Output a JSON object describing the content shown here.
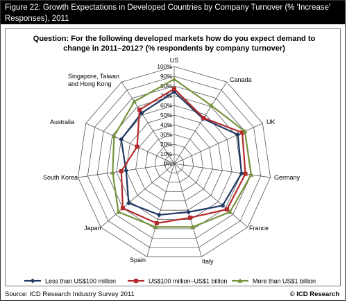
{
  "figure": {
    "title": "Figure 22: Growth Expectations in Developed Countries by Company Turnover (% 'Increase' Responses), 2011",
    "question_line1": "Question: For the following developed markets how do you expect demand to",
    "question_line2": "change in 2011–2012? (% respondents by company turnover)",
    "source": "Source: ICD Research Industry Survey 2011",
    "brand": "© ICD Research"
  },
  "chart_data": {
    "type": "radar",
    "axes": [
      "US",
      "Canada",
      "UK",
      "Germany",
      "France",
      "Italy",
      "Spain",
      "Japan",
      "South Korea",
      "Australia",
      "Singapore, Taiwan and Hong Kong"
    ],
    "axis_labels": [
      [
        "US"
      ],
      [
        "Canada"
      ],
      [
        "UK"
      ],
      [
        "Germany"
      ],
      [
        "France"
      ],
      [
        "Italy"
      ],
      [
        "Spain"
      ],
      [
        "Japan"
      ],
      [
        "South Korea"
      ],
      [
        "Australia"
      ],
      [
        "Singapore, Taiwan",
        "and Hong Kong"
      ]
    ],
    "ticks": [
      "0%",
      "10%",
      "20%",
      "30%",
      "40%",
      "50%",
      "60%",
      "70%",
      "80%",
      "90%",
      "100%"
    ],
    "range": [
      0,
      100
    ],
    "legend_position": "bottom",
    "series": [
      {
        "name": "Less than US$100 million",
        "color": "#1f3864",
        "marker": "diamond",
        "values": [
          74,
          55,
          72,
          70,
          66,
          52,
          55,
          62,
          50,
          60,
          62
        ]
      },
      {
        "name": "US$100 million–US$1 billion",
        "color": "#b22a2a",
        "marker": "square",
        "values": [
          77,
          56,
          77,
          74,
          72,
          58,
          64,
          70,
          55,
          42,
          66
        ]
      },
      {
        "name": "More than US$1 billion",
        "color": "#76933c",
        "marker": "triangle",
        "values": [
          87,
          71,
          80,
          80,
          76,
          68,
          68,
          76,
          64,
          68,
          76
        ]
      }
    ]
  }
}
